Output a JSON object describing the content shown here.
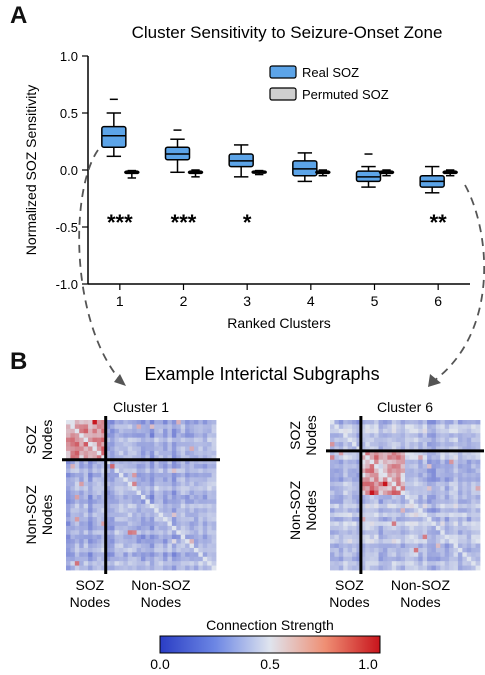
{
  "panels": {
    "a": {
      "letter": "A"
    },
    "b": {
      "letter": "B",
      "title": "Example Interictal Subgraphs"
    }
  },
  "colors": {
    "real": "#5ca4e8",
    "permuted": "#cfcfcf",
    "matrix_low": "#2a3dc4",
    "matrix_mid": "#dfe4ee",
    "matrix_high": "#c8141c"
  },
  "chart_data": {
    "type": "box",
    "title": "Cluster Sensitivity to Seizure-Onset Zone",
    "xlabel": "Ranked Clusters",
    "ylabel": "Normalized SOZ Sensitivity",
    "ylim": [
      -1.0,
      1.0
    ],
    "yticks": [
      "1.0",
      "0.5",
      "0.0",
      "-0.5",
      "-1.0"
    ],
    "categories": [
      "1",
      "2",
      "3",
      "4",
      "5",
      "6"
    ],
    "legend_position": "top-right",
    "series": [
      {
        "name": "Real SOZ",
        "boxes": [
          {
            "whisker_low": 0.12,
            "q1": 0.2,
            "median": 0.3,
            "q3": 0.38,
            "whisker_high": 0.5,
            "outliers": [
              0.62
            ]
          },
          {
            "whisker_low": -0.02,
            "q1": 0.09,
            "median": 0.14,
            "q3": 0.2,
            "whisker_high": 0.27,
            "outliers": [
              0.35
            ]
          },
          {
            "whisker_low": -0.06,
            "q1": 0.03,
            "median": 0.08,
            "q3": 0.14,
            "whisker_high": 0.22,
            "outliers": []
          },
          {
            "whisker_low": -0.1,
            "q1": -0.05,
            "median": 0.01,
            "q3": 0.08,
            "whisker_high": 0.15,
            "outliers": []
          },
          {
            "whisker_low": -0.15,
            "q1": -0.1,
            "median": -0.06,
            "q3": -0.01,
            "whisker_high": 0.03,
            "outliers": [
              0.14
            ]
          },
          {
            "whisker_low": -0.2,
            "q1": -0.15,
            "median": -0.1,
            "q3": -0.05,
            "whisker_high": 0.03,
            "outliers": []
          }
        ]
      },
      {
        "name": "Permuted SOZ",
        "boxes": [
          {
            "whisker_low": -0.07,
            "q1": -0.03,
            "median": -0.02,
            "q3": -0.01,
            "whisker_high": -0.005,
            "outliers": []
          },
          {
            "whisker_low": -0.06,
            "q1": -0.03,
            "median": -0.02,
            "q3": -0.01,
            "whisker_high": 0.0,
            "outliers": []
          },
          {
            "whisker_low": -0.04,
            "q1": -0.025,
            "median": -0.02,
            "q3": -0.01,
            "whisker_high": -0.005,
            "outliers": []
          },
          {
            "whisker_low": -0.05,
            "q1": -0.03,
            "median": -0.02,
            "q3": -0.01,
            "whisker_high": 0.0,
            "outliers": []
          },
          {
            "whisker_low": -0.05,
            "q1": -0.03,
            "median": -0.02,
            "q3": -0.01,
            "whisker_high": 0.0,
            "outliers": []
          },
          {
            "whisker_low": -0.05,
            "q1": -0.03,
            "median": -0.02,
            "q3": -0.01,
            "whisker_high": 0.0,
            "outliers": []
          }
        ]
      }
    ],
    "significance": [
      "***",
      "***",
      "*",
      "",
      "",
      "**"
    ]
  },
  "matrices": [
    {
      "title": "Cluster 1",
      "row_labels": [
        "SOZ Nodes",
        "Non-SOZ Nodes"
      ],
      "col_labels": [
        "SOZ Nodes",
        "Non-SOZ Nodes"
      ],
      "soz_fraction": 0.25,
      "size": 34,
      "seed": 11,
      "hot_block": "soz",
      "base_level": 0.18
    },
    {
      "title": "Cluster 6",
      "row_labels": [
        "SOZ Nodes",
        "Non-SOZ Nodes"
      ],
      "col_labels": [
        "SOZ Nodes",
        "Non-SOZ Nodes"
      ],
      "soz_fraction": 0.2,
      "size": 34,
      "seed": 29,
      "hot_block": "nonsoz",
      "base_level": 0.22
    }
  ],
  "colorbar": {
    "label": "Connection Strength",
    "ticks": [
      "0.0",
      "0.5",
      "1.0"
    ],
    "range": [
      0.0,
      1.0
    ]
  }
}
